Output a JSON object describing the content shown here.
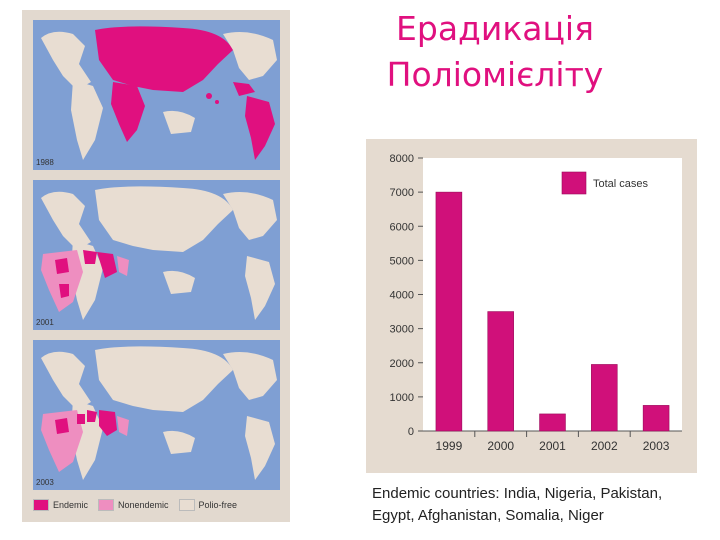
{
  "title": {
    "line1": "Ерадикація",
    "line2": "Поліомієліту"
  },
  "maps": [
    {
      "year": "1988"
    },
    {
      "year": "2001"
    },
    {
      "year": "2003"
    }
  ],
  "map_legend": [
    {
      "label": "Endemic",
      "color": "#e0107f"
    },
    {
      "label": "Nonendemic",
      "color": "#ee8ec0"
    },
    {
      "label": "Polio-free",
      "color": "#e8ddd2"
    }
  ],
  "colors": {
    "ocean": "#7f9fd3",
    "land": "#e8ddd2",
    "endemic": "#e0107f",
    "nonendemic": "#ee8ec0",
    "bar": "#d0107a"
  },
  "chart_data": {
    "type": "bar",
    "categories": [
      "1999",
      "2000",
      "2001",
      "2002",
      "2003"
    ],
    "series": [
      {
        "name": "Total cases",
        "values": [
          7000,
          3500,
          500,
          1950,
          750
        ]
      }
    ],
    "ylim": [
      0,
      8000
    ],
    "yticks": [
      "0",
      "1000",
      "2000",
      "3000",
      "4000",
      "5000",
      "6000",
      "7000",
      "8000"
    ],
    "legend": "top-right",
    "grid": false
  },
  "footer": {
    "line1": "Endemic countries: India, Nigeria, Pakistan,",
    "line2": "Egypt, Afghanistan, Somalia, Niger"
  }
}
